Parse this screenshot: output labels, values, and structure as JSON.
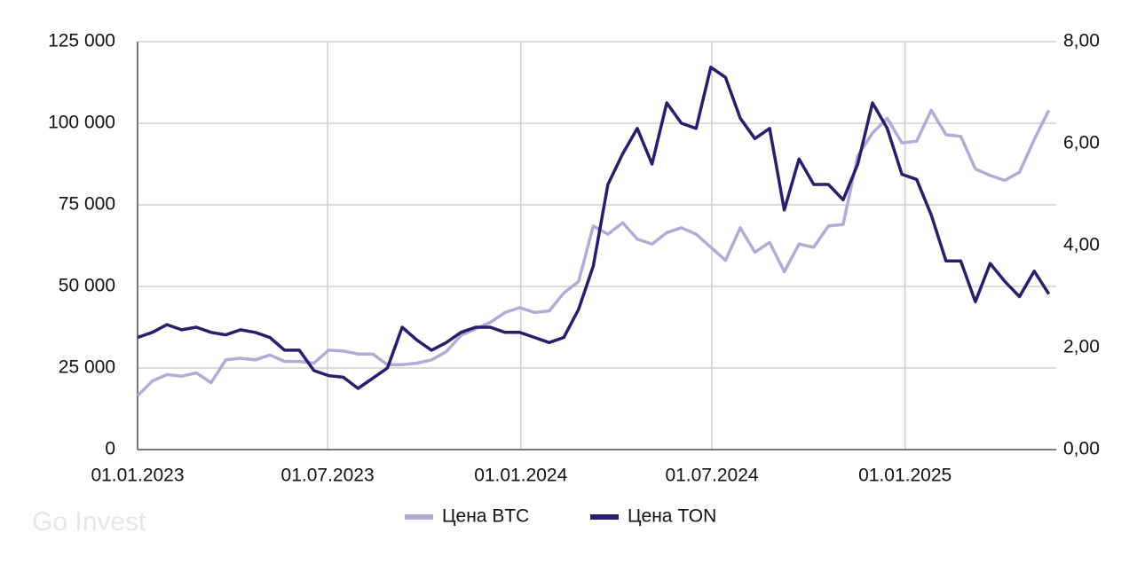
{
  "chart_data": {
    "type": "line",
    "watermark": "Go Invest",
    "x": [
      "2023-01-01",
      "2023-01-15",
      "2023-01-29",
      "2023-02-12",
      "2023-02-26",
      "2023-03-12",
      "2023-03-26",
      "2023-04-09",
      "2023-04-23",
      "2023-05-07",
      "2023-05-21",
      "2023-06-04",
      "2023-06-18",
      "2023-07-02",
      "2023-07-16",
      "2023-07-30",
      "2023-08-13",
      "2023-08-27",
      "2023-09-10",
      "2023-09-24",
      "2023-10-08",
      "2023-10-22",
      "2023-11-05",
      "2023-11-19",
      "2023-12-03",
      "2023-12-17",
      "2023-12-31",
      "2024-01-14",
      "2024-01-28",
      "2024-02-11",
      "2024-02-25",
      "2024-03-10",
      "2024-03-24",
      "2024-04-07",
      "2024-04-21",
      "2024-05-05",
      "2024-05-19",
      "2024-06-02",
      "2024-06-16",
      "2024-06-30",
      "2024-07-14",
      "2024-07-28",
      "2024-08-11",
      "2024-08-25",
      "2024-09-08",
      "2024-09-22",
      "2024-10-06",
      "2024-10-20",
      "2024-11-03",
      "2024-11-17",
      "2024-12-01",
      "2024-12-15",
      "2024-12-29",
      "2025-01-12",
      "2025-01-26",
      "2025-02-09",
      "2025-02-23",
      "2025-03-09",
      "2025-03-23",
      "2025-04-06",
      "2025-04-20",
      "2025-05-04",
      "2025-05-18"
    ],
    "series": [
      {
        "name": "Цена BTC",
        "color": "#b2abd6",
        "axis": "y",
        "values": [
          16500,
          21000,
          23000,
          22500,
          23500,
          20500,
          27500,
          28000,
          27500,
          29000,
          27000,
          27000,
          26500,
          30500,
          30200,
          29300,
          29300,
          26000,
          26000,
          26500,
          27500,
          30000,
          35000,
          37000,
          39000,
          42000,
          43500,
          42000,
          42500,
          48000,
          51500,
          68500,
          66000,
          69500,
          64500,
          63000,
          66500,
          68000,
          66000,
          62000,
          58000,
          68000,
          60500,
          63500,
          54500,
          63000,
          62000,
          68500,
          69000,
          90000,
          97000,
          101500,
          94000,
          94500,
          104000,
          96500,
          96000,
          86000,
          84000,
          82500,
          85000,
          95000,
          104000
        ]
      },
      {
        "name": "Цена TON",
        "color": "#2d1b6b",
        "axis": "y2",
        "values": [
          2.2,
          2.3,
          2.45,
          2.35,
          2.4,
          2.3,
          2.25,
          2.35,
          2.3,
          2.2,
          1.95,
          1.95,
          1.55,
          1.45,
          1.42,
          1.2,
          1.4,
          1.6,
          2.4,
          2.15,
          1.95,
          2.1,
          2.3,
          2.4,
          2.4,
          2.3,
          2.3,
          2.2,
          2.1,
          2.2,
          2.75,
          3.6,
          5.2,
          5.8,
          6.3,
          5.6,
          6.8,
          6.4,
          6.3,
          7.5,
          7.3,
          6.5,
          6.1,
          6.3,
          4.7,
          5.7,
          5.2,
          5.2,
          4.9,
          5.6,
          6.8,
          6.3,
          5.4,
          5.3,
          4.6,
          3.7,
          3.7,
          2.9,
          3.65,
          3.3,
          3.0,
          3.5,
          3.05
        ]
      }
    ],
    "xlim": [
      "2023-01-01",
      "2025-05-25"
    ],
    "xticks": [
      {
        "value": "2023-01-01",
        "label": "01.01.2023"
      },
      {
        "value": "2023-07-01",
        "label": "01.07.2023"
      },
      {
        "value": "2024-01-01",
        "label": "01.01.2024"
      },
      {
        "value": "2024-07-01",
        "label": "01.07.2024"
      },
      {
        "value": "2025-01-01",
        "label": "01.01.2025"
      }
    ],
    "ylim": [
      0,
      125000
    ],
    "yticks": [
      0,
      {
        "value": 25000,
        "label": "25 000"
      },
      {
        "value": 50000,
        "label": "50 000"
      },
      {
        "value": 75000,
        "label": "75 000"
      },
      {
        "value": 100000,
        "label": "100 000"
      },
      {
        "value": 125000,
        "label": "125 000"
      }
    ],
    "y2lim": [
      0,
      8
    ],
    "y2ticks": [
      {
        "value": 0,
        "label": "0,00"
      },
      {
        "value": 2,
        "label": "2,00"
      },
      {
        "value": 4,
        "label": "4,00"
      },
      {
        "value": 6,
        "label": "6,00"
      },
      {
        "value": 8,
        "label": "8,00"
      }
    ],
    "grid": true,
    "legend": "bottom"
  }
}
